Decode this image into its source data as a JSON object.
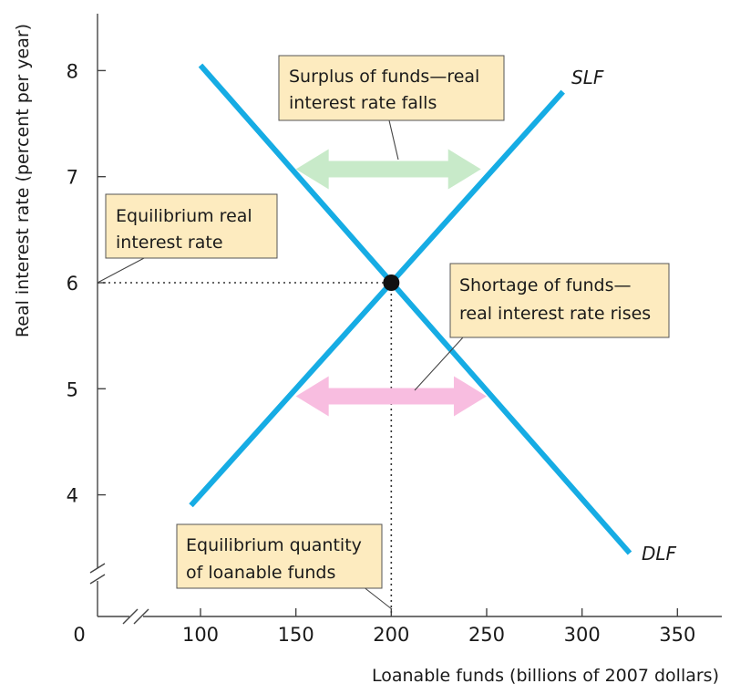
{
  "chart_data": {
    "type": "line",
    "xlabel": "Loanable funds (billions of 2007 dollars)",
    "ylabel": "Real interest rate (percent per year)",
    "x_ticks": [
      0,
      100,
      150,
      200,
      250,
      300,
      350
    ],
    "y_ticks": [
      4,
      5,
      6,
      7,
      8
    ],
    "xlim": [
      0,
      350
    ],
    "ylim": [
      3.5,
      8.5
    ],
    "axis_breaks": [
      "x",
      "y"
    ],
    "grid": false,
    "series": [
      {
        "name": "SLF",
        "color": "#16ace4",
        "x": [
          95,
          290
        ],
        "y": [
          3.9,
          7.8
        ]
      },
      {
        "name": "DLF",
        "color": "#16ace4",
        "x": [
          100,
          325
        ],
        "y": [
          8.05,
          3.45
        ]
      }
    ],
    "equilibrium": {
      "x": 200,
      "y": 6
    },
    "arrows": [
      {
        "y": 7.07,
        "x_start": 150,
        "x_end": 247,
        "color": "#c8eac9"
      },
      {
        "y": 4.93,
        "x_start": 150,
        "x_end": 250,
        "color": "#f8bde0"
      }
    ],
    "annotations": [
      {
        "lines": [
          "Surplus of funds—real",
          "interest rate falls"
        ]
      },
      {
        "lines": [
          "Equilibrium real",
          "interest rate"
        ]
      },
      {
        "lines": [
          "Shortage of funds—",
          "real interest rate rises"
        ]
      },
      {
        "lines": [
          "Equilibrium quantity",
          "of loanable funds"
        ]
      }
    ]
  }
}
